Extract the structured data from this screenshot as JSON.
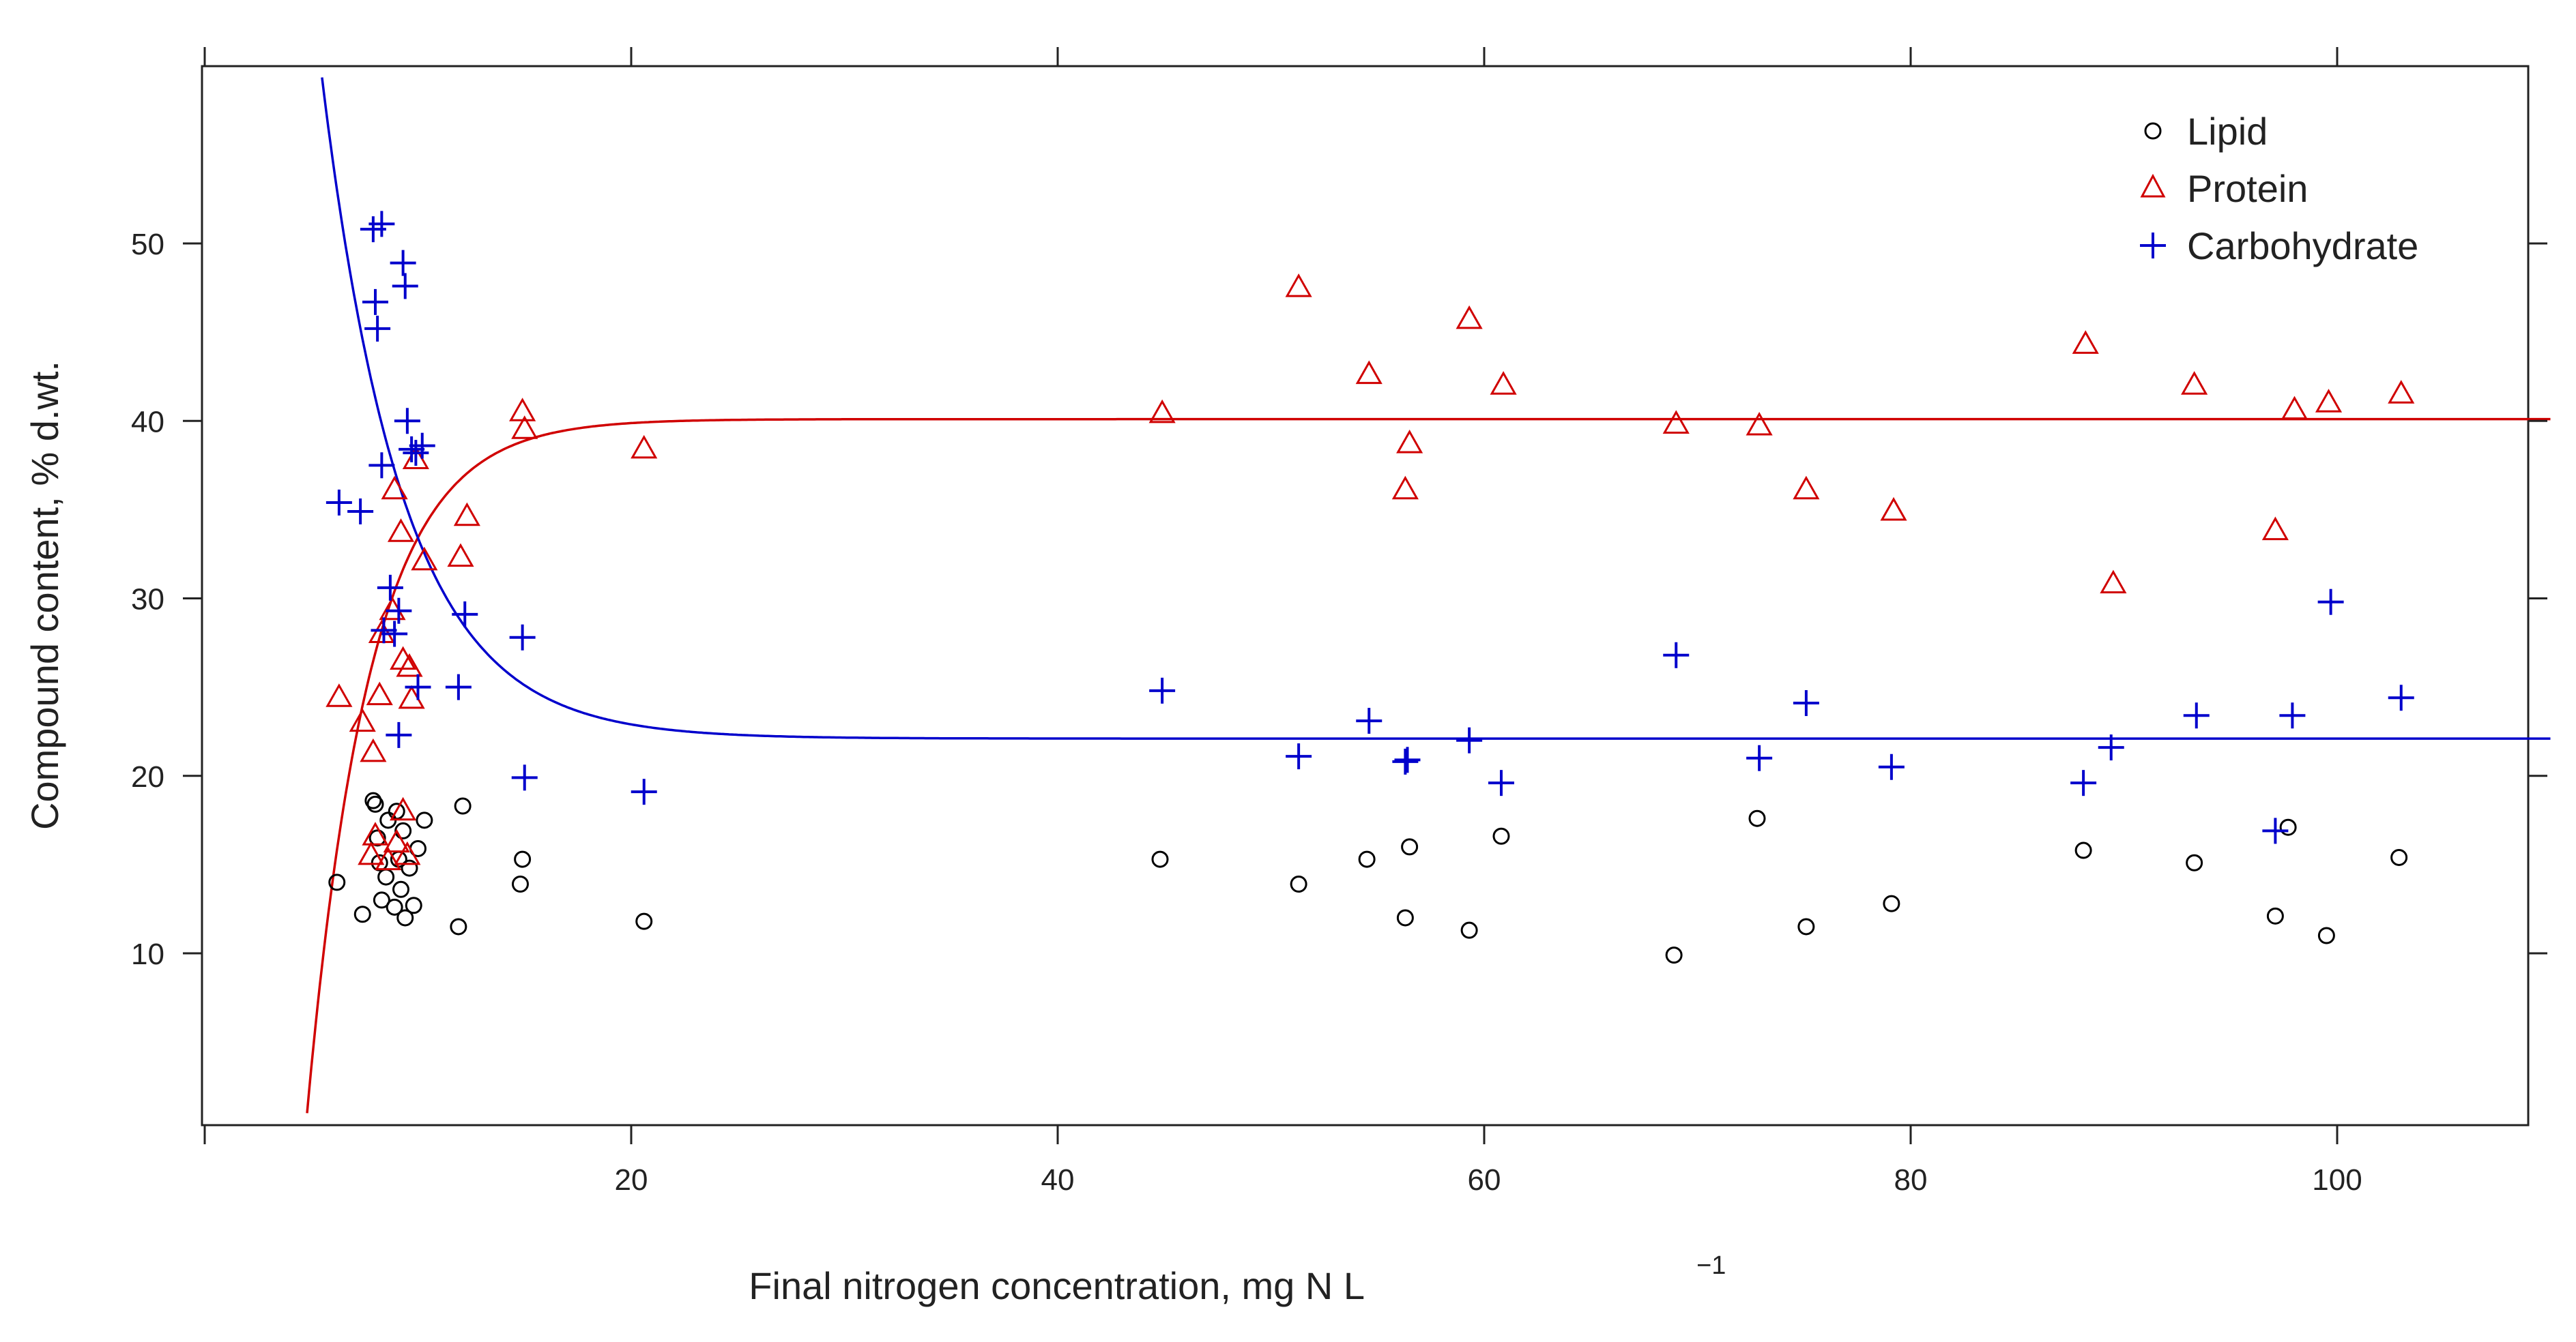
{
  "chart_data": {
    "type": "scatter",
    "title": "",
    "xlabel": "Final nitrogen concentration, mg N L",
    "xlabel_superscript": "−1",
    "ylabel": "Compound content, % d.wt.",
    "xlim": [
      0,
      110
    ],
    "ylim": [
      0,
      60
    ],
    "xticks": [
      20,
      40,
      60,
      80,
      100
    ],
    "yticks": [
      10,
      20,
      30,
      40,
      50
    ],
    "legend_position": "top-right",
    "colors": {
      "lipid": "#000000",
      "protein": "#d00000",
      "carbohydrate": "#0000cc"
    },
    "series": [
      {
        "name": "Lipid",
        "marker": "circle",
        "color": "#000000",
        "points": [
          [
            6.2,
            14
          ],
          [
            7.4,
            12.2
          ],
          [
            7.9,
            18.6
          ],
          [
            8.0,
            18.4
          ],
          [
            8.1,
            16.5
          ],
          [
            8.2,
            15.1
          ],
          [
            8.3,
            13.0
          ],
          [
            8.5,
            14.3
          ],
          [
            8.6,
            17.5
          ],
          [
            8.9,
            12.6
          ],
          [
            9.0,
            18.0
          ],
          [
            9.1,
            15.3
          ],
          [
            9.2,
            13.6
          ],
          [
            9.3,
            16.9
          ],
          [
            9.4,
            12.0
          ],
          [
            9.6,
            14.8
          ],
          [
            9.8,
            12.7
          ],
          [
            10.0,
            15.9
          ],
          [
            10.3,
            17.5
          ],
          [
            11.9,
            11.5
          ],
          [
            12.1,
            18.3
          ],
          [
            14.8,
            13.9
          ],
          [
            14.9,
            15.3
          ],
          [
            20.6,
            11.8
          ],
          [
            44.8,
            15.3
          ],
          [
            51.3,
            13.9
          ],
          [
            54.5,
            15.3
          ],
          [
            56.3,
            12.0
          ],
          [
            56.5,
            16.0
          ],
          [
            59.3,
            11.3
          ],
          [
            60.8,
            16.6
          ],
          [
            68.9,
            9.9
          ],
          [
            72.8,
            17.6
          ],
          [
            75.1,
            11.5
          ],
          [
            79.1,
            12.8
          ],
          [
            88.1,
            15.8
          ],
          [
            93.3,
            15.1
          ],
          [
            97.1,
            12.1
          ],
          [
            97.7,
            17.1
          ],
          [
            99.5,
            11.0
          ],
          [
            102.9,
            15.4
          ]
        ]
      },
      {
        "name": "Protein",
        "marker": "triangle",
        "color": "#d00000",
        "points": [
          [
            6.3,
            24.4
          ],
          [
            7.4,
            23.0
          ],
          [
            7.8,
            15.5
          ],
          [
            7.9,
            21.3
          ],
          [
            8.0,
            16.6
          ],
          [
            8.2,
            24.5
          ],
          [
            8.3,
            28.0
          ],
          [
            8.6,
            15.2
          ],
          [
            8.8,
            29.3
          ],
          [
            8.9,
            36.1
          ],
          [
            9.0,
            16.2
          ],
          [
            9.2,
            33.7
          ],
          [
            9.3,
            18.0
          ],
          [
            9.3,
            26.5
          ],
          [
            9.5,
            15.5
          ],
          [
            9.6,
            26.1
          ],
          [
            9.7,
            24.3
          ],
          [
            9.9,
            37.8
          ],
          [
            10.3,
            32.1
          ],
          [
            12.0,
            32.3
          ],
          [
            12.3,
            34.6
          ],
          [
            14.9,
            40.5
          ],
          [
            15.0,
            39.5
          ],
          [
            20.6,
            38.4
          ],
          [
            44.9,
            40.4
          ],
          [
            51.3,
            47.5
          ],
          [
            54.6,
            42.6
          ],
          [
            56.3,
            36.1
          ],
          [
            56.5,
            38.7
          ],
          [
            59.3,
            45.7
          ],
          [
            60.9,
            42.0
          ],
          [
            69.0,
            39.8
          ],
          [
            72.9,
            39.7
          ],
          [
            75.1,
            36.1
          ],
          [
            79.2,
            34.9
          ],
          [
            88.2,
            44.3
          ],
          [
            89.5,
            30.8
          ],
          [
            93.3,
            42.0
          ],
          [
            97.1,
            33.8
          ],
          [
            98.0,
            40.6
          ],
          [
            99.6,
            41.0
          ],
          [
            103.0,
            41.5
          ]
        ]
      },
      {
        "name": "Carbohydrate",
        "marker": "plus",
        "color": "#0000cc",
        "points": [
          [
            6.3,
            35.4
          ],
          [
            7.3,
            34.9
          ],
          [
            7.9,
            50.8
          ],
          [
            8.0,
            46.7
          ],
          [
            8.1,
            45.2
          ],
          [
            8.3,
            51.1
          ],
          [
            8.3,
            37.5
          ],
          [
            8.4,
            28.2
          ],
          [
            8.7,
            30.6
          ],
          [
            8.9,
            28.0
          ],
          [
            9.1,
            29.3
          ],
          [
            9.1,
            22.3
          ],
          [
            9.3,
            48.9
          ],
          [
            9.4,
            47.6
          ],
          [
            9.5,
            40.0
          ],
          [
            9.7,
            38.4
          ],
          [
            9.9,
            38.2
          ],
          [
            10.0,
            25.0
          ],
          [
            10.2,
            38.6
          ],
          [
            11.9,
            25.0
          ],
          [
            12.2,
            29.1
          ],
          [
            14.9,
            27.8
          ],
          [
            15.0,
            19.9
          ],
          [
            20.6,
            19.1
          ],
          [
            44.9,
            24.8
          ],
          [
            51.3,
            21.1
          ],
          [
            54.6,
            23.1
          ],
          [
            56.3,
            20.8
          ],
          [
            56.4,
            20.9
          ],
          [
            59.3,
            22.0
          ],
          [
            60.8,
            19.6
          ],
          [
            69.0,
            26.8
          ],
          [
            72.9,
            21.0
          ],
          [
            75.1,
            24.1
          ],
          [
            79.1,
            20.5
          ],
          [
            88.1,
            19.6
          ],
          [
            89.4,
            21.6
          ],
          [
            93.4,
            23.4
          ],
          [
            97.1,
            16.9
          ],
          [
            97.9,
            23.4
          ],
          [
            99.7,
            29.8
          ],
          [
            103.0,
            24.4
          ]
        ]
      }
    ],
    "fitted_curves": [
      {
        "name": "Protein fit",
        "color": "#d00000",
        "asymptote": 40.1,
        "start": -200,
        "rate": 0.34
      },
      {
        "name": "Carbohydrate fit",
        "color": "#0000cc",
        "asymptote": 22.1,
        "start": 160,
        "rate": 0.265
      }
    ]
  }
}
